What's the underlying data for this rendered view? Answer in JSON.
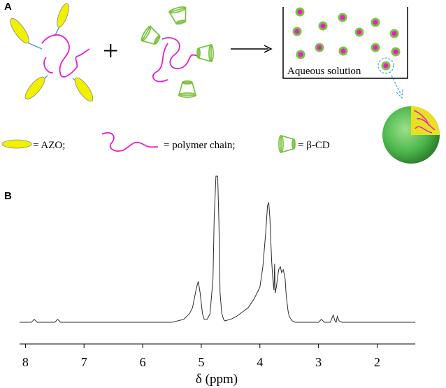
{
  "panel_a": {
    "label": "A",
    "plus_sign": "+",
    "solution_label": "Aqueous solution",
    "legend": {
      "azo_text": "= AZO;",
      "polymer_text": "= polymer chain;",
      "cd_text": "= β-CD"
    },
    "colors": {
      "azo_fill": "#f0f000",
      "polymer_chain": "#e81ec8",
      "cyclodextrin": "#7cc242",
      "linker": "#3aa0d8",
      "sphere": "#4cb84c",
      "dashed_marker": "#3aa8e0"
    },
    "icons": [
      "azo-ellipse-icon",
      "polymer-chain-icon",
      "cyclodextrin-cone-icon",
      "micelle-sphere-icon"
    ]
  },
  "panel_b": {
    "label": "B",
    "xlabel": "δ (ppm)",
    "chart_data": {
      "type": "line",
      "xlabel": "δ (ppm)",
      "x_reversed": true,
      "xlim": [
        8.1,
        1.35
      ],
      "ylim": [
        0,
        1
      ],
      "xticks": [
        8,
        7,
        6,
        5,
        4,
        3,
        2
      ],
      "series": [
        {
          "x": [
            8.1,
            7.9,
            7.85,
            7.8,
            7.5,
            7.45,
            7.4,
            7.0,
            6.5,
            6.0,
            5.5,
            5.3,
            5.2,
            5.15,
            5.12,
            5.08,
            5.05,
            5.02,
            4.98,
            4.95,
            4.9,
            4.85,
            4.8,
            4.78,
            4.75,
            4.72,
            4.7,
            4.68,
            4.65,
            4.62,
            4.6,
            4.5,
            4.4,
            4.2,
            4.1,
            4.0,
            3.95,
            3.9,
            3.87,
            3.85,
            3.83,
            3.8,
            3.78,
            3.76,
            3.75,
            3.74,
            3.72,
            3.7,
            3.68,
            3.65,
            3.63,
            3.6,
            3.57,
            3.55,
            3.52,
            3.5,
            3.45,
            3.4,
            3.3,
            3.0,
            2.95,
            2.9,
            2.8,
            2.75,
            2.72,
            2.7,
            2.68,
            2.65,
            2.6,
            2.5,
            2.0,
            1.5,
            1.35
          ],
          "y": [
            0.0,
            0.0,
            0.02,
            0.0,
            0.0,
            0.02,
            0.0,
            0.0,
            0.0,
            0.0,
            0.0,
            0.02,
            0.06,
            0.1,
            0.16,
            0.24,
            0.28,
            0.2,
            0.06,
            0.02,
            0.02,
            0.06,
            0.3,
            0.72,
            1.0,
            1.0,
            0.7,
            0.2,
            0.06,
            0.02,
            0.01,
            0.02,
            0.04,
            0.1,
            0.16,
            0.24,
            0.38,
            0.62,
            0.8,
            0.82,
            0.72,
            0.42,
            0.3,
            0.22,
            0.4,
            0.2,
            0.24,
            0.3,
            0.36,
            0.38,
            0.34,
            0.36,
            0.3,
            0.18,
            0.08,
            0.04,
            0.01,
            0.0,
            0.0,
            0.0,
            0.02,
            0.0,
            0.0,
            0.05,
            0.01,
            0.0,
            0.04,
            0.01,
            0.0,
            0.0,
            0.0,
            0.0,
            0.0
          ]
        }
      ]
    }
  }
}
